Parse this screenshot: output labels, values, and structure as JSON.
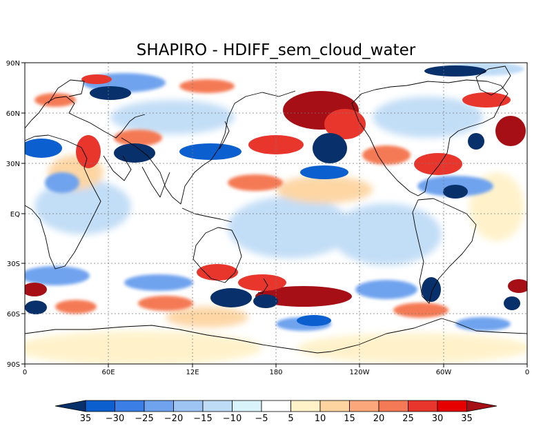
{
  "title": "SHAPIRO - HDIFF_sem_cloud_water",
  "lat_labels": [
    "90N",
    "60N",
    "30N",
    "EQ",
    "30S",
    "60S",
    "90S"
  ],
  "lon_labels": [
    "0",
    "60E",
    "12E",
    "180",
    "120W",
    "60W",
    "0"
  ],
  "colorbar": {
    "labels": [
      "35",
      "−30",
      "−25",
      "−20",
      "−15",
      "−10",
      "−5",
      "5",
      "10",
      "15",
      "20",
      "25",
      "30",
      "35"
    ],
    "colors": [
      "#08306b",
      "#0b5fcf",
      "#3b7fe6",
      "#6fa3ee",
      "#9dc4f2",
      "#bfdcf6",
      "#d9f3fb",
      "#ffffff",
      "#fff2c9",
      "#fdd4a0",
      "#fba77b",
      "#f47a55",
      "#e8362d",
      "#e60000",
      "#a50f15"
    ]
  },
  "field_colors": {
    "deep_blue": "#08306b",
    "blue": "#0b5fcf",
    "mid_blue": "#6fa3ee",
    "light_blue": "#bfdcf6",
    "deep_red": "#a50f15",
    "red": "#e8362d",
    "orange": "#f47a55",
    "light_orange": "#fdd4a0",
    "cream": "#fff2c9",
    "coast": "#000000"
  }
}
